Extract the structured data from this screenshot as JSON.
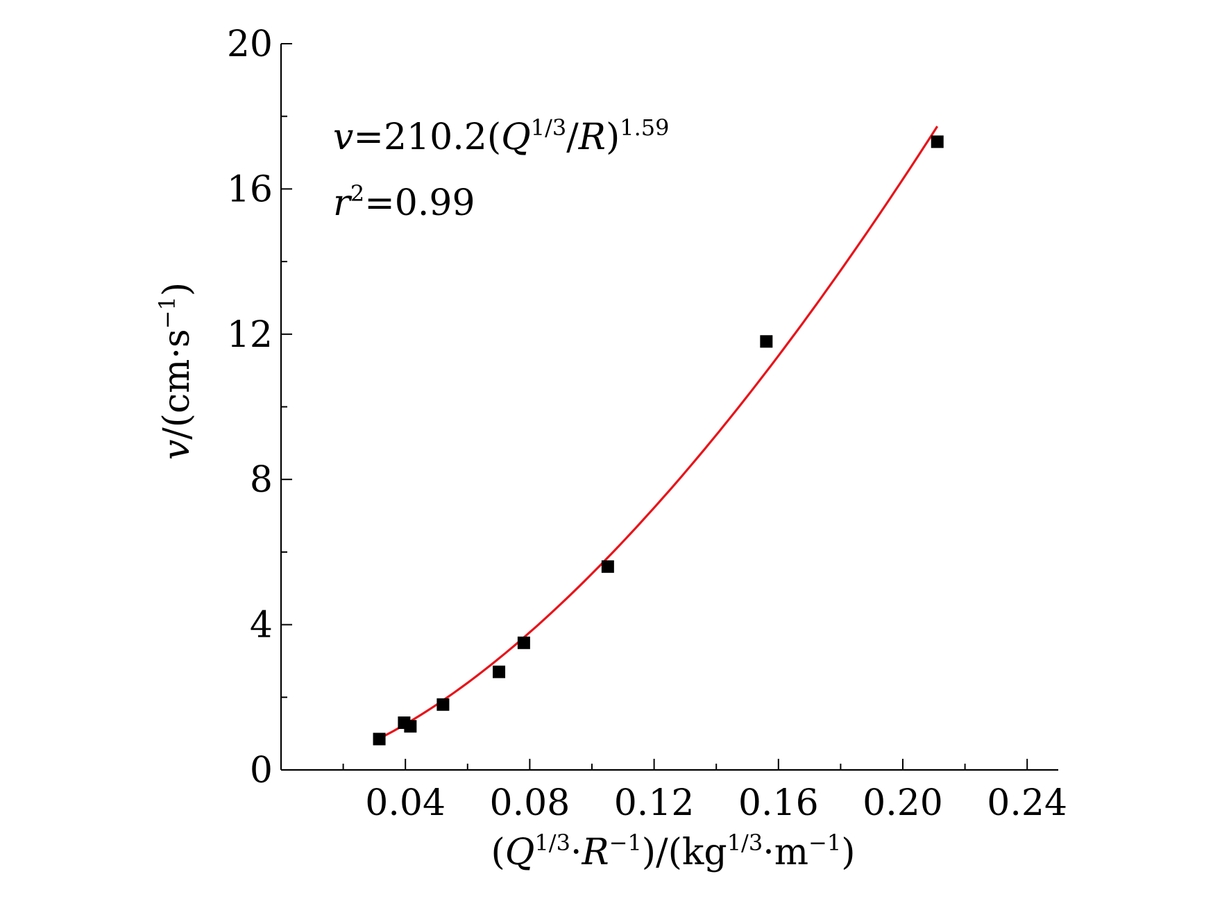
{
  "chart_data": {
    "type": "scatter",
    "title": "",
    "xlim": [
      0,
      0.25
    ],
    "ylim": [
      0,
      20
    ],
    "x_ticks": [
      {
        "value": 0.04,
        "label": "0.04"
      },
      {
        "value": 0.08,
        "label": "0.08"
      },
      {
        "value": 0.12,
        "label": "0.12"
      },
      {
        "value": 0.16,
        "label": "0.16"
      },
      {
        "value": 0.2,
        "label": "0.20"
      },
      {
        "value": 0.24,
        "label": "0.24"
      }
    ],
    "x_minor_ticks": [
      0.02,
      0.06,
      0.1,
      0.14,
      0.18,
      0.22
    ],
    "y_ticks": [
      {
        "value": 0,
        "label": "0"
      },
      {
        "value": 4,
        "label": "4"
      },
      {
        "value": 8,
        "label": "8"
      },
      {
        "value": 12,
        "label": "12"
      },
      {
        "value": 16,
        "label": "16"
      },
      {
        "value": 20,
        "label": "20"
      }
    ],
    "y_minor_ticks": [
      2,
      6,
      10,
      14,
      18
    ],
    "xlabel": {
      "p1": "(",
      "p2": "Q",
      "p3": "1/3",
      "p4": "·",
      "p5": "R",
      "p6": "−1",
      "p7": ")/(kg",
      "p8": "1/3",
      "p9": "·m",
      "p10": "−1",
      "p11": ")"
    },
    "ylabel": {
      "p1": "v",
      "p2": "/(cm·s",
      "p3": "−1",
      "p4": ")"
    },
    "series": [
      {
        "type": "scatter",
        "marker": "square",
        "color": "#000000",
        "points": [
          {
            "x": 0.0316,
            "y": 0.85
          },
          {
            "x": 0.0396,
            "y": 1.3
          },
          {
            "x": 0.0416,
            "y": 1.2
          },
          {
            "x": 0.0521,
            "y": 1.8
          },
          {
            "x": 0.0701,
            "y": 2.7
          },
          {
            "x": 0.0781,
            "y": 3.5
          },
          {
            "x": 0.1051,
            "y": 5.6
          },
          {
            "x": 0.1561,
            "y": 11.8
          },
          {
            "x": 0.2111,
            "y": 17.3
          }
        ]
      },
      {
        "type": "line",
        "color": "#e8141a",
        "fit": {
          "coefficient": 210.2,
          "exponent": 1.59,
          "x_from": 0.0316,
          "x_to": 0.2111
        }
      }
    ],
    "annotations": {
      "equation": {
        "p1": "v",
        "p2": "=210.2(",
        "p3": "Q",
        "p4": "1/3",
        "p5": "/",
        "p6": "R",
        "p7": ")",
        "p8": "1.59"
      },
      "r2": {
        "p1": "r",
        "p2": "2",
        "p3": "=0.99"
      }
    }
  }
}
